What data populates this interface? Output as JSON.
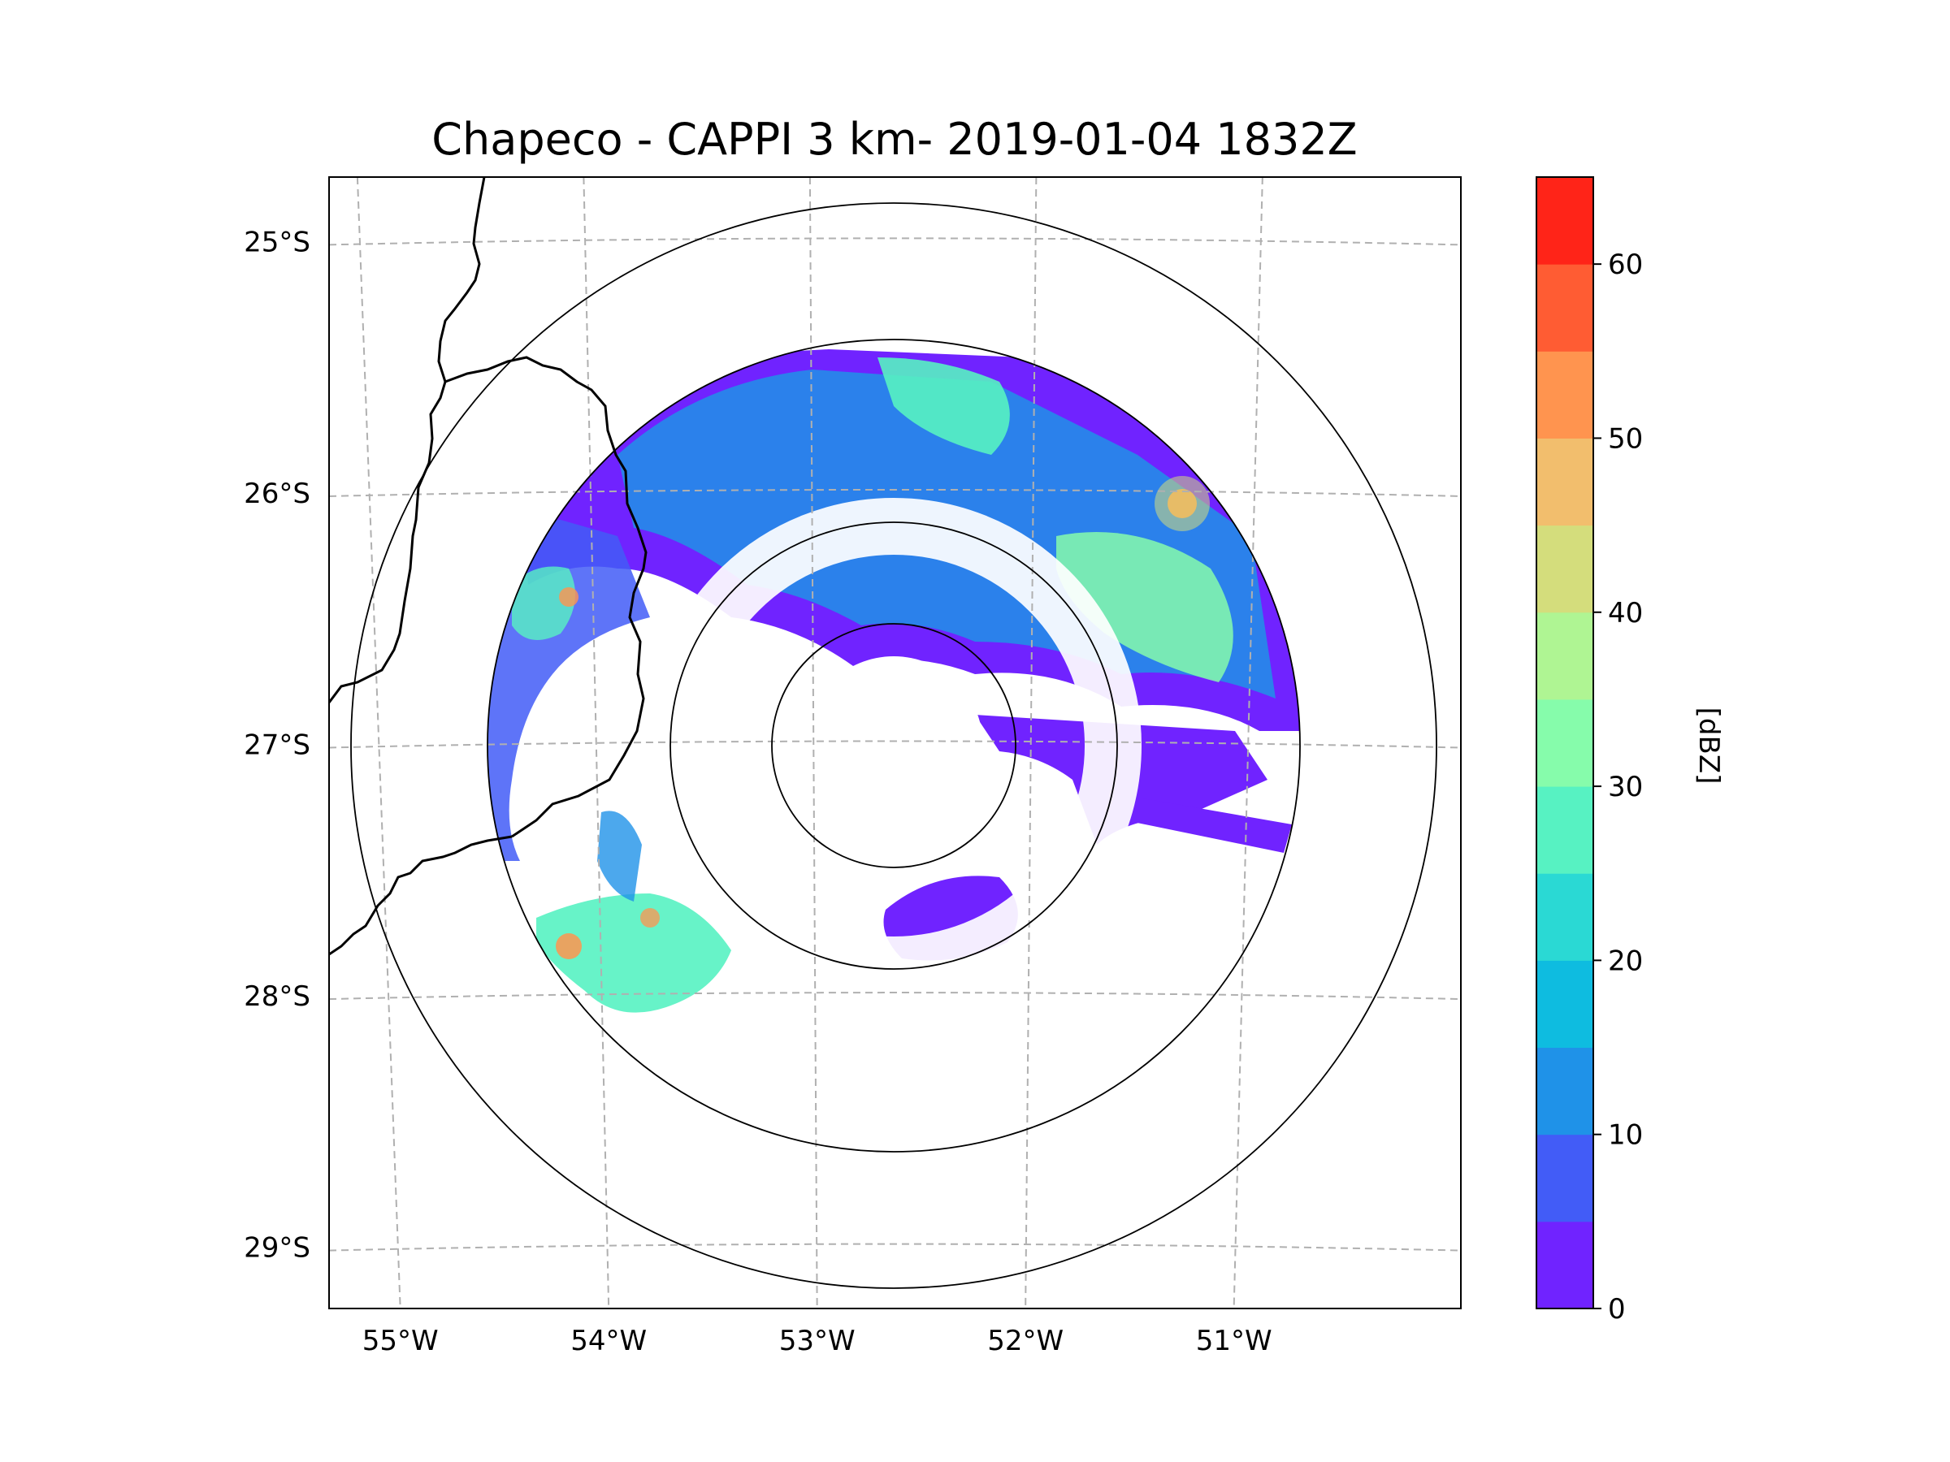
{
  "title": "Chapeco - CAPPI 3 km- 2019-01-04 1832Z",
  "map": {
    "lon_labels": [
      "55°W",
      "54°W",
      "53°W",
      "52°W",
      "51°W"
    ],
    "lat_labels": [
      "25°S",
      "26°S",
      "27°S",
      "28°S",
      "29°S"
    ],
    "lon_values": [
      -55,
      -54,
      -53,
      -52,
      -51
    ],
    "lat_values": [
      -25,
      -26,
      -27,
      -28,
      -29
    ],
    "lon_range": [
      -55.2,
      -50.05
    ],
    "lat_range": [
      -29.25,
      -24.75
    ],
    "gridlines": true,
    "range_rings": 4,
    "radar_site": {
      "lon": -52.6,
      "lat": -27.05
    }
  },
  "colorbar": {
    "label": "[dBZ]",
    "min": 0,
    "max": 65,
    "step": 5,
    "tick_values": [
      0,
      10,
      20,
      30,
      40,
      50,
      60
    ],
    "tick_labels": [
      "0",
      "10",
      "20",
      "30",
      "40",
      "50",
      "60"
    ],
    "colors": [
      "#7023ff",
      "#425cf7",
      "#1f92e8",
      "#0ebce0",
      "#2ad9d4",
      "#57f2c2",
      "#86fcab",
      "#aff593",
      "#d4dd7c",
      "#f2be6d",
      "#ff944f",
      "#ff5c33",
      "#ff2418"
    ]
  }
}
